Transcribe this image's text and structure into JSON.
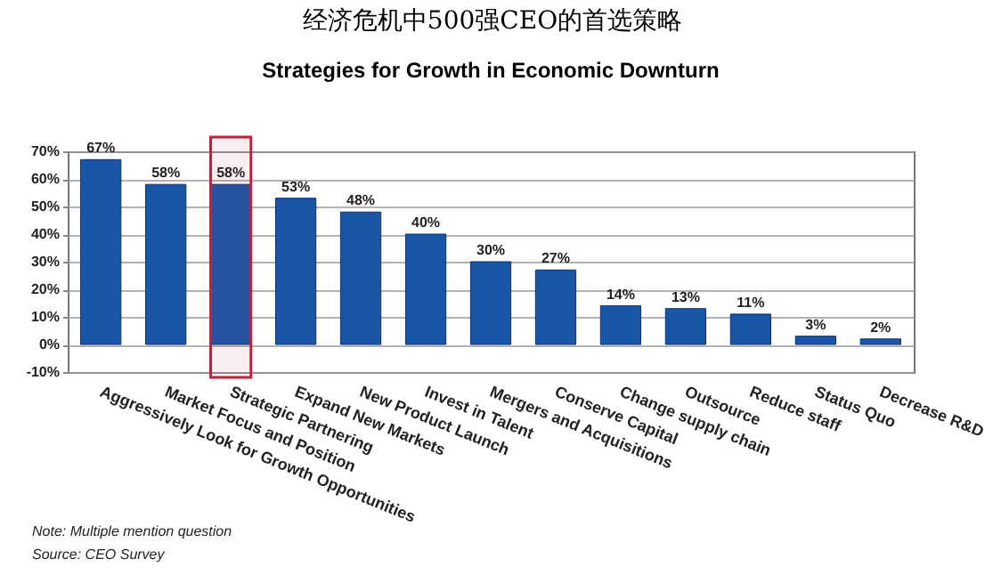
{
  "chart_data": {
    "type": "bar",
    "title": "经济危机中500强CEO的首选策略",
    "subtitle": "Strategies for Growth in Economic Downturn",
    "categories": [
      "Aggressively Look for Growth Opportunities",
      "Market Focus and  Position",
      "Strategic Partnering",
      "Expand New Markets",
      "New Product Launch",
      "Invest in Talent",
      "Mergers and Acquisitions",
      "Conserve Capital",
      "Change supply chain",
      "Outsource",
      "Reduce staff",
      "Status Quo",
      "Decrease R&D"
    ],
    "values": [
      67,
      58,
      58,
      53,
      48,
      40,
      30,
      27,
      14,
      13,
      11,
      3,
      2
    ],
    "value_labels": [
      "67%",
      "58%",
      "58%",
      "53%",
      "48%",
      "40%",
      "30%",
      "27%",
      "14%",
      "13%",
      "11%",
      "3%",
      "2%"
    ],
    "color": "#1a56a8",
    "ylim": [
      -10,
      70
    ],
    "yticks": [
      {
        "value": -10,
        "label": "-10%"
      },
      {
        "value": 0,
        "label": "0%"
      },
      {
        "value": 10,
        "label": "10%"
      },
      {
        "value": 20,
        "label": "20%"
      },
      {
        "value": 30,
        "label": "30%"
      },
      {
        "value": 40,
        "label": "40%"
      },
      {
        "value": 50,
        "label": "50%"
      },
      {
        "value": 60,
        "label": "60%"
      },
      {
        "value": 70,
        "label": "70%"
      }
    ],
    "grid": "y",
    "bands": [
      {
        "axis": "x",
        "from": "Strategic Partnering",
        "to": "Strategic Partnering",
        "color": "#c0223a"
      }
    ],
    "annotations": [
      "Note: Multiple mention question",
      "Source: CEO Survey"
    ]
  }
}
